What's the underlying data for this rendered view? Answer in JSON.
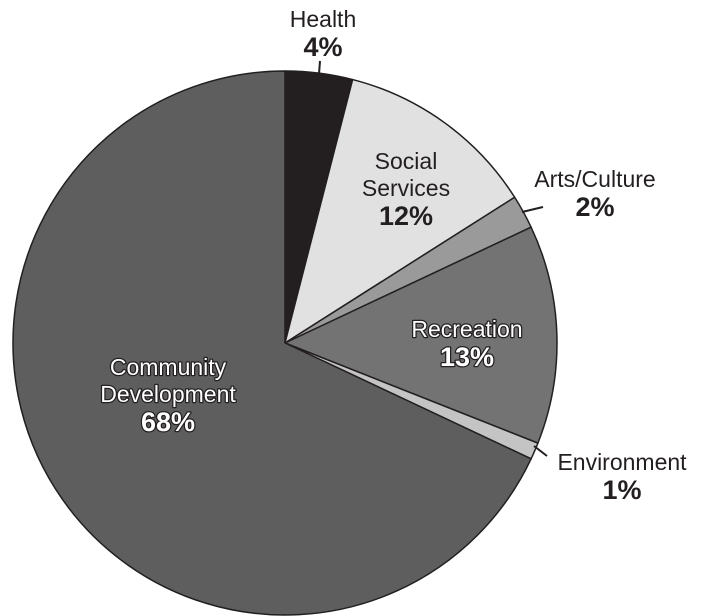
{
  "chart_data": {
    "type": "pie",
    "title": "",
    "start": "12 o'clock",
    "direction": "clockwise",
    "legend": "none",
    "slices": [
      {
        "label": "Health",
        "value": 4,
        "value_label": "4%",
        "color": "#231f20",
        "label_lines": [
          "Health"
        ],
        "value_label_color": "#231f20",
        "label_color": "#231f20"
      },
      {
        "label": "Social Services",
        "value": 12,
        "value_label": "12%",
        "color": "#e1e1e1",
        "label_lines": [
          "Social",
          "Services"
        ],
        "label_color": "#231f20",
        "value_label_color": "#231f20"
      },
      {
        "label": "Arts/Culture",
        "value": 2,
        "value_label": "2%",
        "color": "#9a9a9a",
        "label_lines": [
          "Arts/Culture"
        ],
        "label_color": "#231f20",
        "value_label_color": "#231f20"
      },
      {
        "label": "Recreation",
        "value": 13,
        "value_label": "13%",
        "color": "#737373",
        "label_lines": [
          "Recreation"
        ],
        "label_color": "#ffffff",
        "value_label_color": "#ffffff",
        "halo": "#231f20"
      },
      {
        "label": "Environment",
        "value": 1,
        "value_label": "1%",
        "color": "#c4c4c4",
        "label_lines": [
          "Environment"
        ],
        "label_color": "#231f20",
        "value_label_color": "#231f20"
      },
      {
        "label": "Community Development",
        "value": 68,
        "value_label": "68%",
        "color": "#5e5e5e",
        "label_lines": [
          "Community",
          "Development"
        ],
        "label_color": "#ffffff",
        "value_label_color": "#ffffff",
        "halo": "#231f20"
      }
    ]
  }
}
